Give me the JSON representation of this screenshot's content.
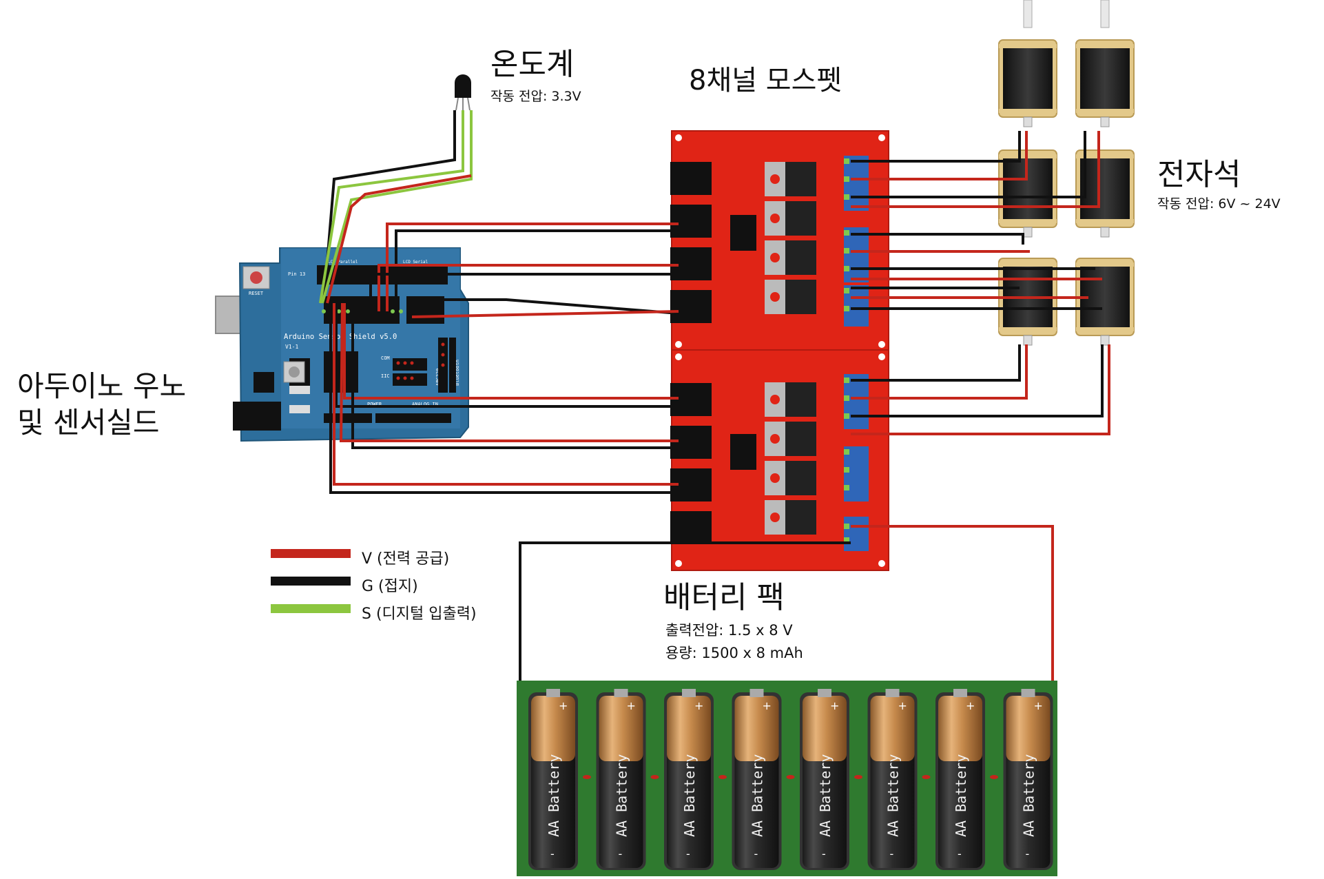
{
  "labels": {
    "thermometer": {
      "title": "온도계",
      "voltage": "작동 전압: 3.3V"
    },
    "mosfet": {
      "title": "8채널 모스펫"
    },
    "electromagnet": {
      "title": "전자석",
      "voltage": "작동 전압: 6V ~ 24V"
    },
    "arduino": {
      "line1": "아두이노 우노",
      "line2": "및 센서실드"
    },
    "battery": {
      "title": "배터리 팩",
      "output": "출력전압: 1.5 x 8 V",
      "capacity": "용량: 1500 x 8 mAh"
    }
  },
  "legend": [
    {
      "key": "power",
      "label": "V (전력 공급)",
      "color": "#c4261c"
    },
    {
      "key": "ground",
      "label": "G (접지)",
      "color": "#111111"
    },
    {
      "key": "signal",
      "label": "S (디지털 입출력)",
      "color": "#8cc63f"
    }
  ],
  "board_text": {
    "shield_name": "Arduino Sensor Shield v5.0",
    "shield_version": "V1-1",
    "reset": "RESET",
    "pin13": "Pin 13",
    "power": "POWER",
    "analog_in": "ANALOG IN",
    "com": "COM",
    "iic": "IIC",
    "bluetooth": "Bluetooth",
    "apc": "APC220",
    "lcd": "LCD Parallel",
    "lcd_serial": "LCD Serial"
  },
  "battery_cell_text": "AA Battery",
  "battery_count": 8,
  "colors": {
    "power": "#c4261c",
    "ground": "#111111",
    "signal": "#8cc63f",
    "mosfet_board": "#e02416",
    "arduino_board": "#2d6e9c",
    "battery_board": "#2f7a2f",
    "coil": "#e3c98a"
  }
}
